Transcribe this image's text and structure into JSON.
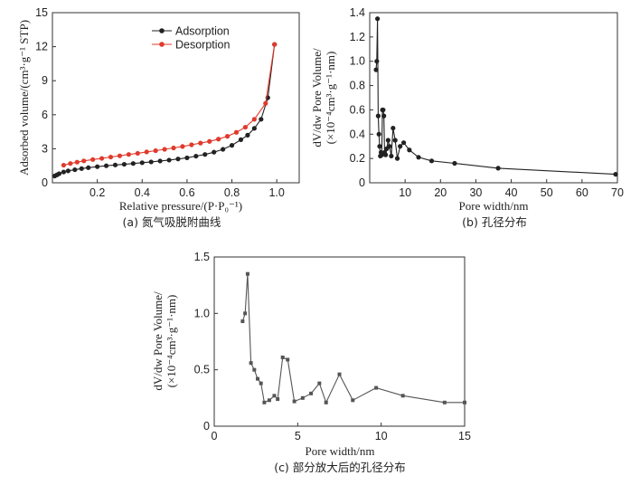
{
  "chart_data": [
    {
      "id": "a",
      "type": "line",
      "caption": "(a) 氮气吸脱附曲线",
      "xlabel": "Relative pressure/(P·P₀⁻¹)",
      "ylabel": "Adsorbed volume/(cm³·g⁻¹ STP)",
      "xlim": [
        0,
        1.1
      ],
      "ylim": [
        0,
        15
      ],
      "xticks": [
        0.2,
        0.4,
        0.6,
        0.8,
        1.0
      ],
      "xtick_labels": [
        "0.2",
        "0.4",
        "0.6",
        "0.8",
        "1.0"
      ],
      "yticks": [
        0,
        3,
        6,
        9,
        12,
        15
      ],
      "ytick_labels": [
        "0",
        "3",
        "6",
        "9",
        "12",
        "15"
      ],
      "legend_position": "top-center",
      "series": [
        {
          "name": "Adsorption",
          "color": "#222222",
          "x": [
            0.01,
            0.02,
            0.03,
            0.05,
            0.07,
            0.1,
            0.13,
            0.16,
            0.2,
            0.24,
            0.28,
            0.32,
            0.36,
            0.4,
            0.44,
            0.48,
            0.52,
            0.56,
            0.6,
            0.64,
            0.68,
            0.72,
            0.76,
            0.8,
            0.84,
            0.87,
            0.9,
            0.93,
            0.96,
            0.99
          ],
          "y": [
            0.6,
            0.7,
            0.8,
            0.95,
            1.05,
            1.15,
            1.25,
            1.33,
            1.42,
            1.5,
            1.57,
            1.63,
            1.7,
            1.77,
            1.84,
            1.92,
            2.0,
            2.1,
            2.2,
            2.35,
            2.5,
            2.7,
            2.95,
            3.3,
            3.8,
            4.2,
            4.8,
            5.6,
            7.5,
            12.2
          ]
        },
        {
          "name": "Desorption",
          "color": "#e03a2c",
          "x": [
            0.05,
            0.08,
            0.11,
            0.14,
            0.18,
            0.22,
            0.26,
            0.3,
            0.34,
            0.38,
            0.42,
            0.46,
            0.5,
            0.54,
            0.58,
            0.62,
            0.66,
            0.7,
            0.74,
            0.78,
            0.82,
            0.86,
            0.9,
            0.95,
            0.99
          ],
          "y": [
            1.55,
            1.7,
            1.82,
            1.93,
            2.05,
            2.15,
            2.27,
            2.38,
            2.5,
            2.6,
            2.72,
            2.83,
            2.95,
            3.07,
            3.2,
            3.35,
            3.5,
            3.65,
            3.85,
            4.1,
            4.45,
            4.9,
            5.6,
            7.0,
            12.2
          ]
        }
      ]
    },
    {
      "id": "b",
      "type": "line",
      "caption": "(b) 孔径分布",
      "xlabel": "Pore width/nm",
      "ylabel_line1": "dV/dw Pore Volume/",
      "ylabel_line2": "(×10⁻⁴cm³·g⁻¹·nm)",
      "xlim": [
        0,
        70
      ],
      "ylim": [
        0,
        1.4
      ],
      "xticks": [
        10,
        20,
        30,
        40,
        50,
        60,
        70
      ],
      "xtick_labels": [
        "10",
        "20",
        "30",
        "40",
        "50",
        "60",
        "70"
      ],
      "yticks": [
        0,
        0.2,
        0.4,
        0.6,
        0.8,
        1.0,
        1.2,
        1.4
      ],
      "ytick_labels": [
        "0",
        "0.2",
        "0.4",
        "0.6",
        "0.8",
        "1.0",
        "1.2",
        "1.4"
      ],
      "series": [
        {
          "color": "#222222",
          "x": [
            1.8,
            2.0,
            2.2,
            2.4,
            2.6,
            2.8,
            3.0,
            3.2,
            3.4,
            3.6,
            3.8,
            4.0,
            4.2,
            4.5,
            4.8,
            5.2,
            5.6,
            6.1,
            6.6,
            7.2,
            7.8,
            8.6,
            9.6,
            11.2,
            13.8,
            17.5,
            24.0,
            36.3,
            69.5
          ],
          "y": [
            0.93,
            1.0,
            1.35,
            0.55,
            0.4,
            0.3,
            0.22,
            0.25,
            0.23,
            0.6,
            0.6,
            0.55,
            0.25,
            0.23,
            0.28,
            0.35,
            0.3,
            0.22,
            0.45,
            0.35,
            0.2,
            0.3,
            0.33,
            0.27,
            0.21,
            0.18,
            0.16,
            0.12,
            0.07
          ]
        }
      ]
    },
    {
      "id": "c",
      "type": "line",
      "caption": "(c) 部分放大后的孔径分布",
      "xlabel": "Pore width/nm",
      "ylabel_line1": "dV/dw Pore Volume/",
      "ylabel_line2": "(×10⁻⁴cm³·g⁻¹·nm)",
      "xlim": [
        0,
        15
      ],
      "ylim": [
        0,
        1.5
      ],
      "xticks": [
        0,
        5,
        10,
        15
      ],
      "xtick_labels": [
        "0",
        "5",
        "10",
        "15"
      ],
      "yticks": [
        0,
        0.5,
        1.0,
        1.5
      ],
      "ytick_labels": [
        "0",
        "0.5",
        "1.0",
        "1.5"
      ],
      "series": [
        {
          "color": "#555555",
          "x": [
            1.7,
            1.85,
            2.0,
            2.2,
            2.4,
            2.6,
            2.8,
            3.0,
            3.3,
            3.6,
            3.8,
            4.1,
            4.4,
            4.8,
            5.3,
            5.8,
            6.3,
            6.7,
            7.5,
            8.3,
            9.7,
            11.3,
            13.8,
            15.0
          ],
          "y": [
            0.93,
            1.0,
            1.35,
            0.56,
            0.5,
            0.42,
            0.38,
            0.21,
            0.23,
            0.27,
            0.24,
            0.61,
            0.59,
            0.22,
            0.25,
            0.29,
            0.38,
            0.21,
            0.46,
            0.23,
            0.34,
            0.27,
            0.21,
            0.21
          ]
        }
      ]
    }
  ]
}
